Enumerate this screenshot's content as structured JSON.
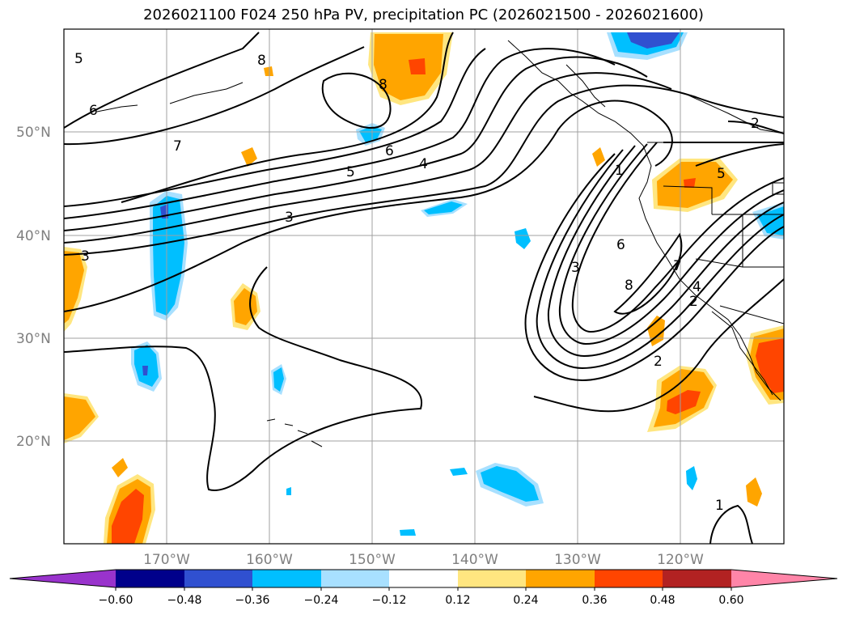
{
  "title": "2026021100 F024 250 hPa PV, precipitation PC (2026021500 - 2026021600)",
  "lat_labels": [
    "50°N",
    "40°N",
    "30°N",
    "20°N"
  ],
  "lon_labels": [
    "170°W",
    "160°W",
    "150°W",
    "140°W",
    "130°W",
    "120°W"
  ],
  "contour_labels": [
    "5",
    "6",
    "8",
    "7",
    "3",
    "5",
    "6",
    "4",
    "8",
    "1",
    "5",
    "2",
    "3",
    "6",
    "8",
    "7",
    "4",
    "2",
    "1",
    "3",
    "2"
  ],
  "colorbar": {
    "ticks": [
      "−0.60",
      "−0.48",
      "−0.36",
      "−0.24",
      "−0.12",
      "0.12",
      "0.24",
      "0.36",
      "0.48",
      "0.60"
    ],
    "colors": [
      "#9933cc",
      "#00008b",
      "#3050d0",
      "#00bfff",
      "#a8e0ff",
      "#ffffff",
      "#ffe680",
      "#ffa500",
      "#ff4500",
      "#b22222",
      "#ff85a8"
    ]
  }
}
